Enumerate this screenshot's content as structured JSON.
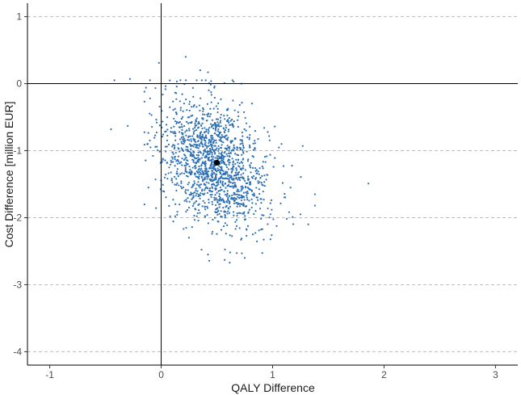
{
  "chart_data": {
    "type": "scatter",
    "title": "",
    "xlabel": "QALY Difference",
    "ylabel": "Cost Difference [million EUR]",
    "xlim": [
      -1.2,
      3.2
    ],
    "ylim": [
      -4.2,
      1.2
    ],
    "x_ticks": [
      -1,
      0,
      1,
      2,
      3
    ],
    "y_ticks": [
      1,
      0,
      -1,
      -2,
      -3,
      -4
    ],
    "x_tick_labels": [
      "-1",
      "0",
      "1",
      "2",
      "3"
    ],
    "y_tick_labels": [
      "1",
      "0",
      "-1",
      "-2",
      "-3",
      "-4"
    ],
    "grid": "horizontal dashed gridlines",
    "reference_lines": {
      "x": 0,
      "y": 0
    },
    "point_color": "#2c6fb3",
    "mean_point_color": "#000000",
    "mean_point": {
      "x": 0.5,
      "y": -1.18
    },
    "cloud": {
      "n_points": 1500,
      "center": {
        "x": 0.48,
        "y": -1.2
      },
      "sd_x": 0.24,
      "sd_y": 0.48,
      "correlation": -0.35
    },
    "outliers": [
      {
        "x": -0.42,
        "y": 0.05
      },
      {
        "x": -0.28,
        "y": 0.07
      },
      {
        "x": -0.45,
        "y": -0.68
      },
      {
        "x": -0.3,
        "y": -0.63
      },
      {
        "x": -0.1,
        "y": -0.22
      },
      {
        "x": -0.15,
        "y": -0.12
      },
      {
        "x": -0.12,
        "y": -0.9
      },
      {
        "x": -0.02,
        "y": 0.31
      },
      {
        "x": 0.22,
        "y": 0.4
      },
      {
        "x": 0.35,
        "y": 0.2
      },
      {
        "x": 0.42,
        "y": 0.17
      },
      {
        "x": 0.65,
        "y": 0.03
      },
      {
        "x": 0.72,
        "y": 0.0
      },
      {
        "x": 1.02,
        "y": -0.64
      },
      {
        "x": 1.08,
        "y": -0.9
      },
      {
        "x": 1.27,
        "y": -0.93
      },
      {
        "x": 1.25,
        "y": -1.95
      },
      {
        "x": 1.32,
        "y": -2.1
      },
      {
        "x": 1.38,
        "y": -1.65
      },
      {
        "x": 1.38,
        "y": -1.82
      },
      {
        "x": 1.86,
        "y": -1.49
      },
      {
        "x": 0.75,
        "y": -2.6
      },
      {
        "x": 0.57,
        "y": -2.63
      },
      {
        "x": 0.42,
        "y": -2.55
      },
      {
        "x": 0.08,
        "y": -1.98
      }
    ]
  }
}
